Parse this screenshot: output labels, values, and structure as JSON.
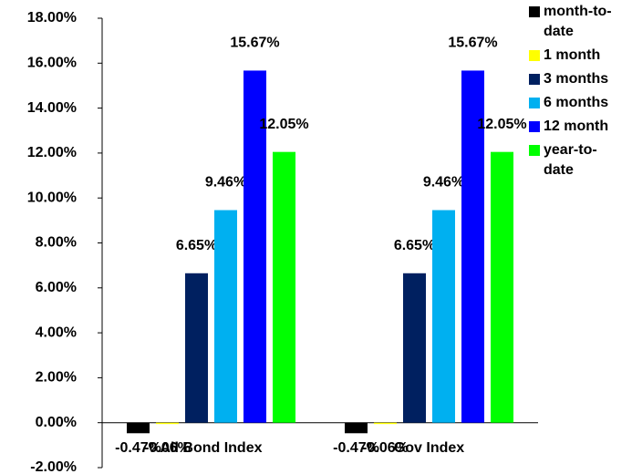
{
  "chart_data": {
    "type": "bar",
    "categories": [
      "All Bond Index",
      "Gov Index"
    ],
    "series": [
      {
        "name": "month-to-date",
        "color": "#000000",
        "values": [
          -0.47,
          -0.47
        ],
        "value_labels": [
          "-0.47%",
          "-0.47%"
        ]
      },
      {
        "name": "1 month",
        "color": "#ffff00",
        "values": [
          -0.06,
          -0.06
        ],
        "value_labels": [
          "-0.06%",
          "-0.06%"
        ]
      },
      {
        "name": "3 months",
        "color": "#002060",
        "values": [
          6.65,
          6.65
        ],
        "value_labels": [
          "6.65%",
          "6.65%"
        ]
      },
      {
        "name": "6 months",
        "color": "#00b0f0",
        "values": [
          9.46,
          9.46
        ],
        "value_labels": [
          "9.46%",
          "9.46%"
        ]
      },
      {
        "name": "12 month",
        "color": "#0000ff",
        "values": [
          15.67,
          15.67
        ],
        "value_labels": [
          "15.67%",
          "15.67%"
        ]
      },
      {
        "name": "year-to-date",
        "color": "#00ff00",
        "values": [
          12.05,
          12.05
        ],
        "value_labels": [
          "12.05%",
          "12.05%"
        ]
      }
    ],
    "ylim": [
      -2,
      18
    ],
    "yticks": [
      {
        "value": -2,
        "label": "-2.00%"
      },
      {
        "value": 0,
        "label": "0.00%"
      },
      {
        "value": 2,
        "label": "2.00%"
      },
      {
        "value": 4,
        "label": "4.00%"
      },
      {
        "value": 6,
        "label": "6.00%"
      },
      {
        "value": 8,
        "label": "8.00%"
      },
      {
        "value": 10,
        "label": "10.00%"
      },
      {
        "value": 12,
        "label": "12.00%"
      },
      {
        "value": 14,
        "label": "14.00%"
      },
      {
        "value": 16,
        "label": "16.00%"
      },
      {
        "value": 18,
        "label": "18.00%"
      }
    ],
    "legend": "right"
  }
}
